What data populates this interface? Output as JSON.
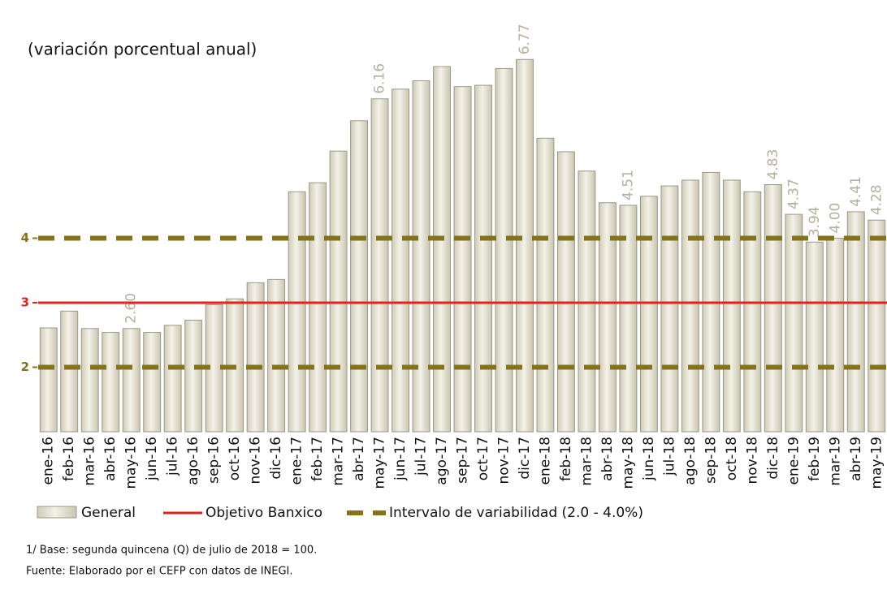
{
  "chart_data": {
    "type": "bar",
    "y_axis_label": "(variación porcentual anual)",
    "categories": [
      "ene-16",
      "feb-16",
      "mar-16",
      "abr-16",
      "may-16",
      "jun-16",
      "jul-16",
      "ago-16",
      "sep-16",
      "oct-16",
      "nov-16",
      "dic-16",
      "ene-17",
      "feb-17",
      "mar-17",
      "abr-17",
      "may-17",
      "jun-17",
      "jul-17",
      "ago-17",
      "sep-17",
      "oct-17",
      "nov-17",
      "dic-17",
      "ene-18",
      "feb-18",
      "mar-18",
      "abr-18",
      "may-18",
      "jun-18",
      "jul-18",
      "ago-18",
      "sep-18",
      "oct-18",
      "nov-18",
      "dic-18",
      "ene-19",
      "feb-19",
      "mar-19",
      "abr-19",
      "may-19"
    ],
    "series": [
      {
        "name": "General",
        "color": "#e8e5d6",
        "values": [
          2.61,
          2.87,
          2.6,
          2.54,
          2.6,
          2.54,
          2.65,
          2.73,
          2.97,
          3.06,
          3.31,
          3.36,
          4.72,
          4.86,
          5.35,
          5.82,
          6.16,
          6.31,
          6.44,
          6.66,
          6.35,
          6.37,
          6.63,
          6.77,
          5.55,
          5.34,
          5.04,
          4.55,
          4.51,
          4.65,
          4.81,
          4.9,
          5.02,
          4.9,
          4.72,
          4.83,
          4.37,
          3.94,
          4.0,
          4.41,
          4.28
        ],
        "value_labels": [
          null,
          null,
          null,
          null,
          "2.60",
          null,
          null,
          null,
          null,
          null,
          null,
          null,
          null,
          null,
          null,
          null,
          "6.16",
          null,
          null,
          null,
          null,
          null,
          null,
          "6.77",
          null,
          null,
          null,
          null,
          "4.51",
          null,
          null,
          null,
          null,
          null,
          null,
          "4.83",
          "4.37",
          "3.94",
          "4.00",
          "4.41",
          "4.28"
        ]
      }
    ],
    "reference_lines": [
      {
        "name": "Objetivo Banxico",
        "color": "#e3231c",
        "values": [
          3
        ],
        "dashed": false
      },
      {
        "name": "Intervalo de variabilidad (2.0 - 4.0%)",
        "color": "#85731a",
        "values": [
          2,
          4
        ],
        "dashed": true
      }
    ],
    "ylim": [
      1,
      7
    ],
    "yticks": [
      2,
      3,
      4
    ],
    "notes": [
      "1/ Base: segunda quincena (Q) de julio de 2018 = 100.",
      "Fuente: Elaborado por el CEFP con datos de INEGI."
    ]
  }
}
